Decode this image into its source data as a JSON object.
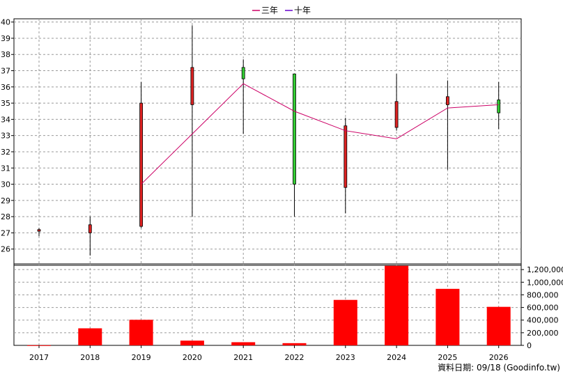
{
  "legend": [
    {
      "label": "三年",
      "color": "#cc0066"
    },
    {
      "label": "十年",
      "color": "#6600cc"
    }
  ],
  "footer": "資料日期: 09/18 (Goodinfo.tw)",
  "colors": {
    "up": "#dd2222",
    "down": "#33cc33",
    "volume": "#ff0000",
    "ma3": "#cc0066",
    "grid": "#999999"
  },
  "chart_data": [
    {
      "type": "candlestick",
      "categories": [
        "2017",
        "2018",
        "2019",
        "2020",
        "2021",
        "2022",
        "2023",
        "2024",
        "2025",
        "2026"
      ],
      "ohlc": [
        {
          "open": 27.1,
          "high": 27.3,
          "low": 26.8,
          "close": 27.2
        },
        {
          "open": 27.0,
          "high": 28.0,
          "low": 25.6,
          "close": 27.5
        },
        {
          "open": 27.4,
          "high": 36.3,
          "low": 27.3,
          "close": 35.0
        },
        {
          "open": 34.9,
          "high": 39.8,
          "low": 28.0,
          "close": 37.2
        },
        {
          "open": 37.2,
          "high": 37.7,
          "low": 33.1,
          "close": 36.5
        },
        {
          "open": 36.8,
          "high": 36.8,
          "low": 28.0,
          "close": 30.0
        },
        {
          "open": 29.8,
          "high": 34.1,
          "low": 28.2,
          "close": 33.6
        },
        {
          "open": 33.5,
          "high": 36.8,
          "low": 33.3,
          "close": 35.1
        },
        {
          "open": 34.9,
          "high": 36.4,
          "low": 30.9,
          "close": 35.4
        },
        {
          "open": 35.2,
          "high": 36.3,
          "low": 33.4,
          "close": 34.4
        }
      ],
      "series": [
        {
          "name": "三年",
          "values": [
            null,
            null,
            30.0,
            33.1,
            36.2,
            34.5,
            33.3,
            32.8,
            34.7,
            34.9
          ]
        }
      ],
      "ylim": [
        25,
        40.2
      ],
      "yticks": [
        26,
        27,
        28,
        29,
        30,
        31,
        32,
        33,
        34,
        35,
        36,
        37,
        38,
        39,
        40
      ],
      "grid": true,
      "legend_position": "top-center"
    },
    {
      "type": "bar",
      "categories": [
        "2017",
        "2018",
        "2019",
        "2020",
        "2021",
        "2022",
        "2023",
        "2024",
        "2025",
        "2026"
      ],
      "values": [
        2000,
        270000,
        405000,
        75000,
        50000,
        35000,
        720000,
        1260000,
        895000,
        610000
      ],
      "ylim": [
        0,
        1290000
      ],
      "yticks": [
        0,
        200000,
        400000,
        600000,
        800000,
        1000000,
        1200000
      ],
      "ytick_labels": [
        "0",
        "200,000",
        "400,000",
        "600,000",
        "800,000",
        "1,000,000",
        "1,200,000"
      ],
      "ylabel_position": "right",
      "grid": true
    }
  ]
}
